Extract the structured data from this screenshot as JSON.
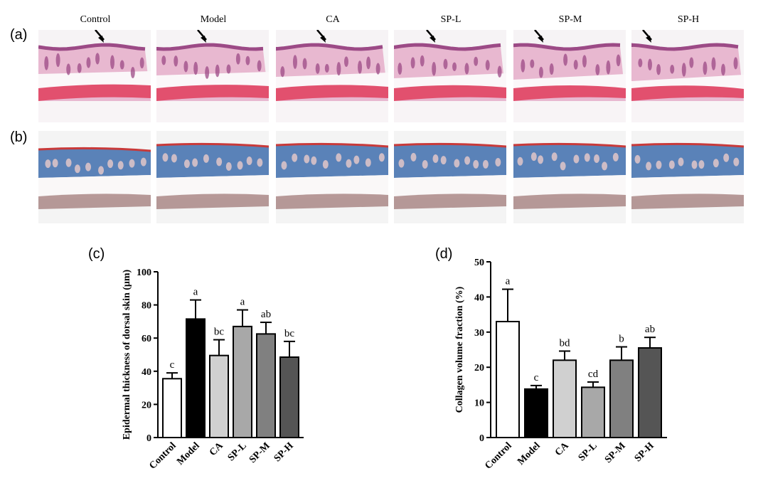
{
  "panels": {
    "a": "(a)",
    "b": "(b)",
    "c": "(c)",
    "d": "(d)"
  },
  "groups": [
    "Control",
    "Model",
    "CA",
    "SP-L",
    "SP-M",
    "SP-H"
  ],
  "micrographs": {
    "he_row": "H&E stained dorsal skin sections with arrows marking the epidermis",
    "masson_row": "Masson trichrome stained dorsal skin sections"
  },
  "colors": {
    "he_epidermis": "#9c4a86",
    "he_dermis": "#e8b8d0",
    "he_muscle": "#e2506e",
    "masson_blue": "#5a82b8",
    "masson_red": "#c83a3a",
    "masson_brown": "#a07a78",
    "bar_fills": [
      "#ffffff",
      "#000000",
      "#d0d0d0",
      "#a8a8a8",
      "#808080",
      "#555555"
    ]
  },
  "chart_data": [
    {
      "type": "bar",
      "categories": [
        "Control",
        "Model",
        "CA",
        "SP-L",
        "SP-M",
        "SP-H"
      ],
      "values": [
        35.5,
        71.5,
        49.5,
        67,
        62.5,
        48.5
      ],
      "errors": [
        3.5,
        11.5,
        9.5,
        10,
        7,
        9.5
      ],
      "letters": [
        "c",
        "a",
        "bc",
        "a",
        "ab",
        "bc"
      ],
      "title": "",
      "xlabel": "",
      "ylabel": "Epidermal thickness of dorsal skin (μm)",
      "ylim": [
        0,
        100
      ],
      "yticks": [
        0,
        20,
        40,
        60,
        80,
        100
      ],
      "grid": false
    },
    {
      "type": "bar",
      "categories": [
        "Control",
        "Model",
        "CA",
        "SP-L",
        "SP-M",
        "SP-H"
      ],
      "values": [
        33,
        13.8,
        22,
        14.3,
        22,
        25.5
      ],
      "errors": [
        9.2,
        1,
        2.6,
        1.5,
        3.8,
        3
      ],
      "letters": [
        "a",
        "c",
        "bd",
        "cd",
        "b",
        "ab"
      ],
      "title": "",
      "xlabel": "",
      "ylabel": "Collagen volume fraction (%)",
      "ylim": [
        0,
        50
      ],
      "yticks": [
        0,
        10,
        20,
        30,
        40,
        50
      ],
      "grid": false
    }
  ]
}
